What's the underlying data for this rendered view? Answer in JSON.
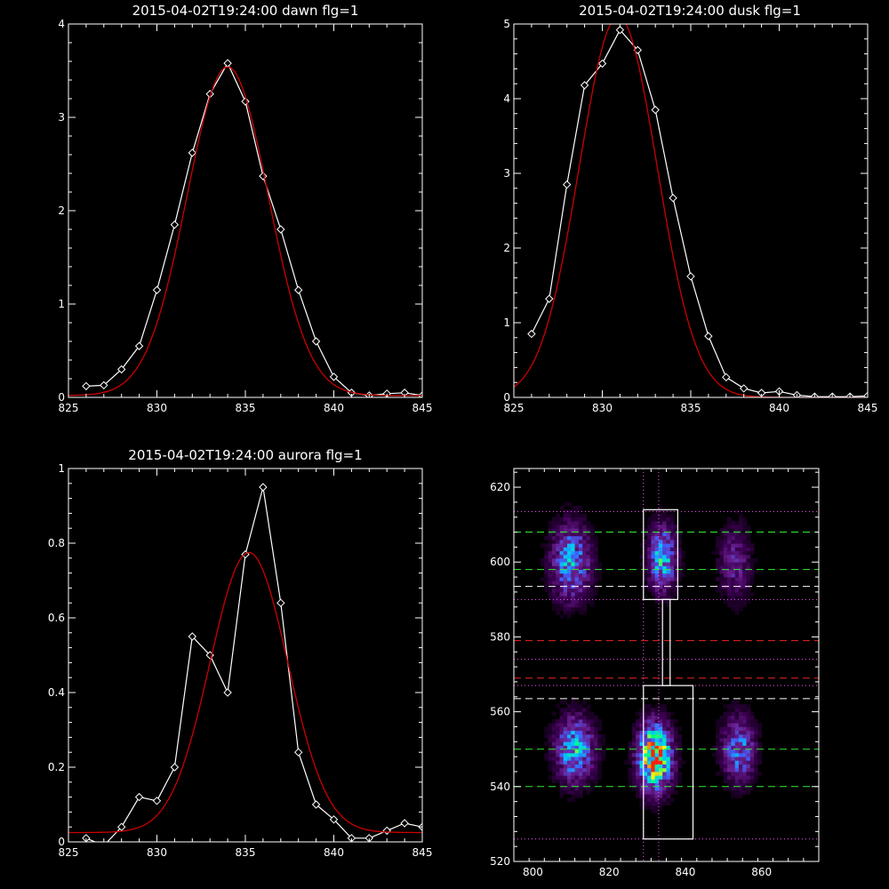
{
  "chart_data": [
    {
      "type": "line",
      "title": "2015-04-02T19:24:00 dawn flg=1",
      "xlim": [
        825,
        845
      ],
      "ylim": [
        0,
        4
      ],
      "xticks": [
        825,
        830,
        835,
        840,
        845
      ],
      "yticks": [
        0,
        1,
        2,
        3,
        4
      ],
      "series": [
        {
          "role": "data",
          "color": "#ffffff",
          "marker": "diamond",
          "x": [
            826,
            827,
            828,
            829,
            830,
            831,
            832,
            833,
            834,
            835,
            836,
            837,
            838,
            839,
            840,
            841,
            842,
            843,
            844,
            845
          ],
          "y": [
            0.12,
            0.13,
            0.3,
            0.55,
            1.15,
            1.85,
            2.62,
            3.25,
            3.58,
            3.17,
            2.37,
            1.8,
            1.15,
            0.6,
            0.22,
            0.05,
            0.02,
            0.04,
            0.05,
            0.02
          ]
        },
        {
          "role": "fit",
          "color": "#cc0000",
          "gaussian": {
            "amp": 3.52,
            "center": 834.0,
            "sigma": 2.3,
            "base": 0.02
          }
        }
      ]
    },
    {
      "type": "line",
      "title": "2015-04-02T19:24:00 dusk flg=1",
      "xlim": [
        825,
        845
      ],
      "ylim": [
        0,
        5
      ],
      "xticks": [
        825,
        830,
        835,
        840,
        845
      ],
      "yticks": [
        0,
        1,
        2,
        3,
        4,
        5
      ],
      "series": [
        {
          "role": "data",
          "color": "#ffffff",
          "marker": "diamond",
          "x": [
            826,
            827,
            828,
            829,
            830,
            831,
            832,
            833,
            834,
            835,
            836,
            837,
            838,
            839,
            840,
            841,
            842,
            843,
            844,
            845
          ],
          "y": [
            0.85,
            1.32,
            2.85,
            4.18,
            4.47,
            4.92,
            4.65,
            3.85,
            2.67,
            1.62,
            0.82,
            0.27,
            0.12,
            0.06,
            0.08,
            0.03,
            0.01,
            0.01,
            0.01,
            0.02
          ]
        },
        {
          "role": "fit",
          "color": "#cc0000",
          "gaussian": {
            "amp": 5.1,
            "center": 830.9,
            "sigma": 2.2,
            "base": 0.0
          }
        }
      ]
    },
    {
      "type": "line",
      "title": "2015-04-02T19:24:00 aurora flg=1",
      "xlim": [
        825,
        845
      ],
      "ylim": [
        0,
        1.0
      ],
      "xticks": [
        825,
        830,
        835,
        840,
        845
      ],
      "yticks": [
        0,
        0.2,
        0.4,
        0.6,
        0.8,
        1.0
      ],
      "series": [
        {
          "role": "data",
          "color": "#ffffff",
          "marker": "diamond",
          "x": [
            826,
            827,
            828,
            829,
            830,
            831,
            832,
            833,
            834,
            835,
            836,
            837,
            838,
            839,
            840,
            841,
            842,
            843,
            844,
            845
          ],
          "y": [
            0.01,
            -0.01,
            0.04,
            0.12,
            0.11,
            0.2,
            0.55,
            0.5,
            0.4,
            0.77,
            0.95,
            0.64,
            0.24,
            0.1,
            0.06,
            0.01,
            0.01,
            0.03,
            0.05,
            0.04
          ]
        },
        {
          "role": "fit",
          "color": "#cc0000",
          "gaussian": {
            "amp": 0.75,
            "center": 835.2,
            "sigma": 2.2,
            "base": 0.025
          }
        }
      ]
    },
    {
      "type": "heatmap",
      "xlim": [
        795,
        875
      ],
      "ylim": [
        520,
        625
      ],
      "xticks": [
        800,
        820,
        840,
        860
      ],
      "yticks": [
        520,
        540,
        560,
        580,
        600,
        620
      ],
      "colormap": [
        "#000000",
        "#3a0050",
        "#6a2090",
        "#4060ff",
        "#00c8ff",
        "#00ff80",
        "#ffff00",
        "#ff2000"
      ],
      "blobs": [
        {
          "cx": 810,
          "cy": 600,
          "sx": 3.5,
          "sy": 7,
          "amp": 0.5
        },
        {
          "cx": 811,
          "cy": 550,
          "sx": 3.5,
          "sy": 6,
          "amp": 0.55
        },
        {
          "cx": 834,
          "cy": 601,
          "sx": 2.5,
          "sy": 6,
          "amp": 0.55
        },
        {
          "cx": 832,
          "cy": 548,
          "sx": 3.0,
          "sy": 6,
          "amp": 0.95
        },
        {
          "cx": 853,
          "cy": 600,
          "sx": 3.0,
          "sy": 7,
          "amp": 0.26
        },
        {
          "cx": 854,
          "cy": 550,
          "sx": 3.0,
          "sy": 6,
          "amp": 0.45
        }
      ],
      "vlines_dotted": [
        {
          "x": 829,
          "color": "#ff55ff"
        },
        {
          "x": 833,
          "color": "#ff55ff"
        }
      ],
      "hlines": [
        {
          "y": 613.5,
          "color": "#ff55ff",
          "style": "dotted"
        },
        {
          "y": 608,
          "color": "#33ee33",
          "style": "dashed"
        },
        {
          "y": 598,
          "color": "#33ee33",
          "style": "dashed"
        },
        {
          "y": 593.5,
          "color": "#ffffff",
          "style": "dashed"
        },
        {
          "y": 590,
          "color": "#ff55ff",
          "style": "dotted"
        },
        {
          "y": 579,
          "color": "#ee2222",
          "style": "dashed"
        },
        {
          "y": 574,
          "color": "#ff55ff",
          "style": "dotted"
        },
        {
          "y": 569,
          "color": "#ee2222",
          "style": "dashed"
        },
        {
          "y": 567,
          "color": "#ff55ff",
          "style": "dotted"
        },
        {
          "y": 563.5,
          "color": "#ffffff",
          "style": "dashed"
        },
        {
          "y": 550,
          "color": "#33ee33",
          "style": "dashed"
        },
        {
          "y": 540,
          "color": "#33ee33",
          "style": "dashed"
        },
        {
          "y": 526,
          "color": "#ff55ff",
          "style": "dotted"
        }
      ],
      "boxes": [
        {
          "x0": 829,
          "x1": 838,
          "y0": 590,
          "y1": 614
        },
        {
          "x0": 834,
          "x1": 836,
          "y0": 567,
          "y1": 590
        },
        {
          "x0": 829,
          "x1": 842,
          "y0": 526,
          "y1": 567
        }
      ]
    }
  ]
}
